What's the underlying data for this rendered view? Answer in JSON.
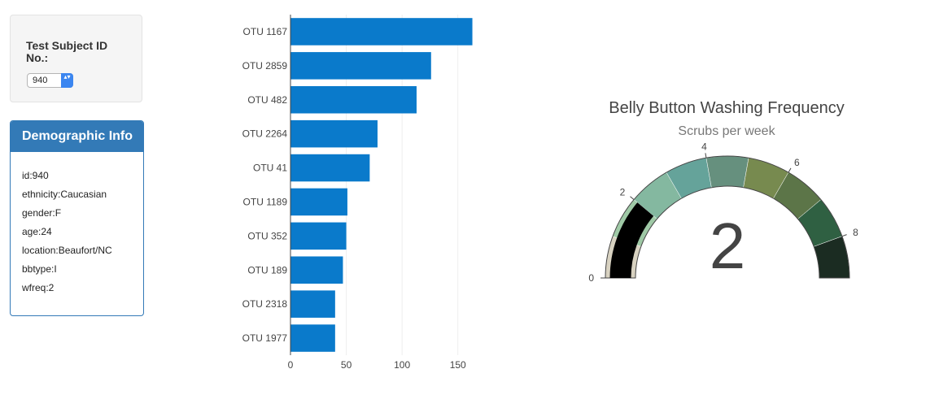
{
  "selector": {
    "label": "Test Subject ID No.:",
    "selected": "940",
    "arrow_glyph": "▴▾"
  },
  "demographic": {
    "title": "Demographic Info",
    "lines": [
      "id:940",
      "ethnicity:Caucasian",
      "gender:F",
      "age:24",
      "location:Beaufort/NC",
      "bbtype:I",
      "wfreq:2"
    ]
  },
  "chart_data": [
    {
      "type": "bar",
      "orientation": "horizontal",
      "categories": [
        "OTU 1167",
        "OTU 2859",
        "OTU 482",
        "OTU 2264",
        "OTU 41",
        "OTU 1189",
        "OTU 352",
        "OTU 189",
        "OTU 2318",
        "OTU 1977"
      ],
      "values": [
        163,
        126,
        113,
        78,
        71,
        51,
        50,
        47,
        40,
        40
      ],
      "xlim": [
        0,
        175
      ],
      "xticks": [
        0,
        50,
        100,
        150
      ],
      "grid": true,
      "bar_color": "#0a7acb"
    },
    {
      "type": "gauge",
      "title": "Belly Button Washing Frequency",
      "subtitle": "Scrubs per week",
      "value": 2,
      "range": [
        0,
        9
      ],
      "ticks": [
        0,
        2,
        4,
        6,
        8
      ],
      "needle_color": "#000000",
      "step_colors": [
        "#d8d2c1",
        "#9fc9a6",
        "#84b8a0",
        "#65a39a",
        "#66907e",
        "#778a4f",
        "#5c7548",
        "#2f6042",
        "#1b2c22"
      ]
    }
  ]
}
